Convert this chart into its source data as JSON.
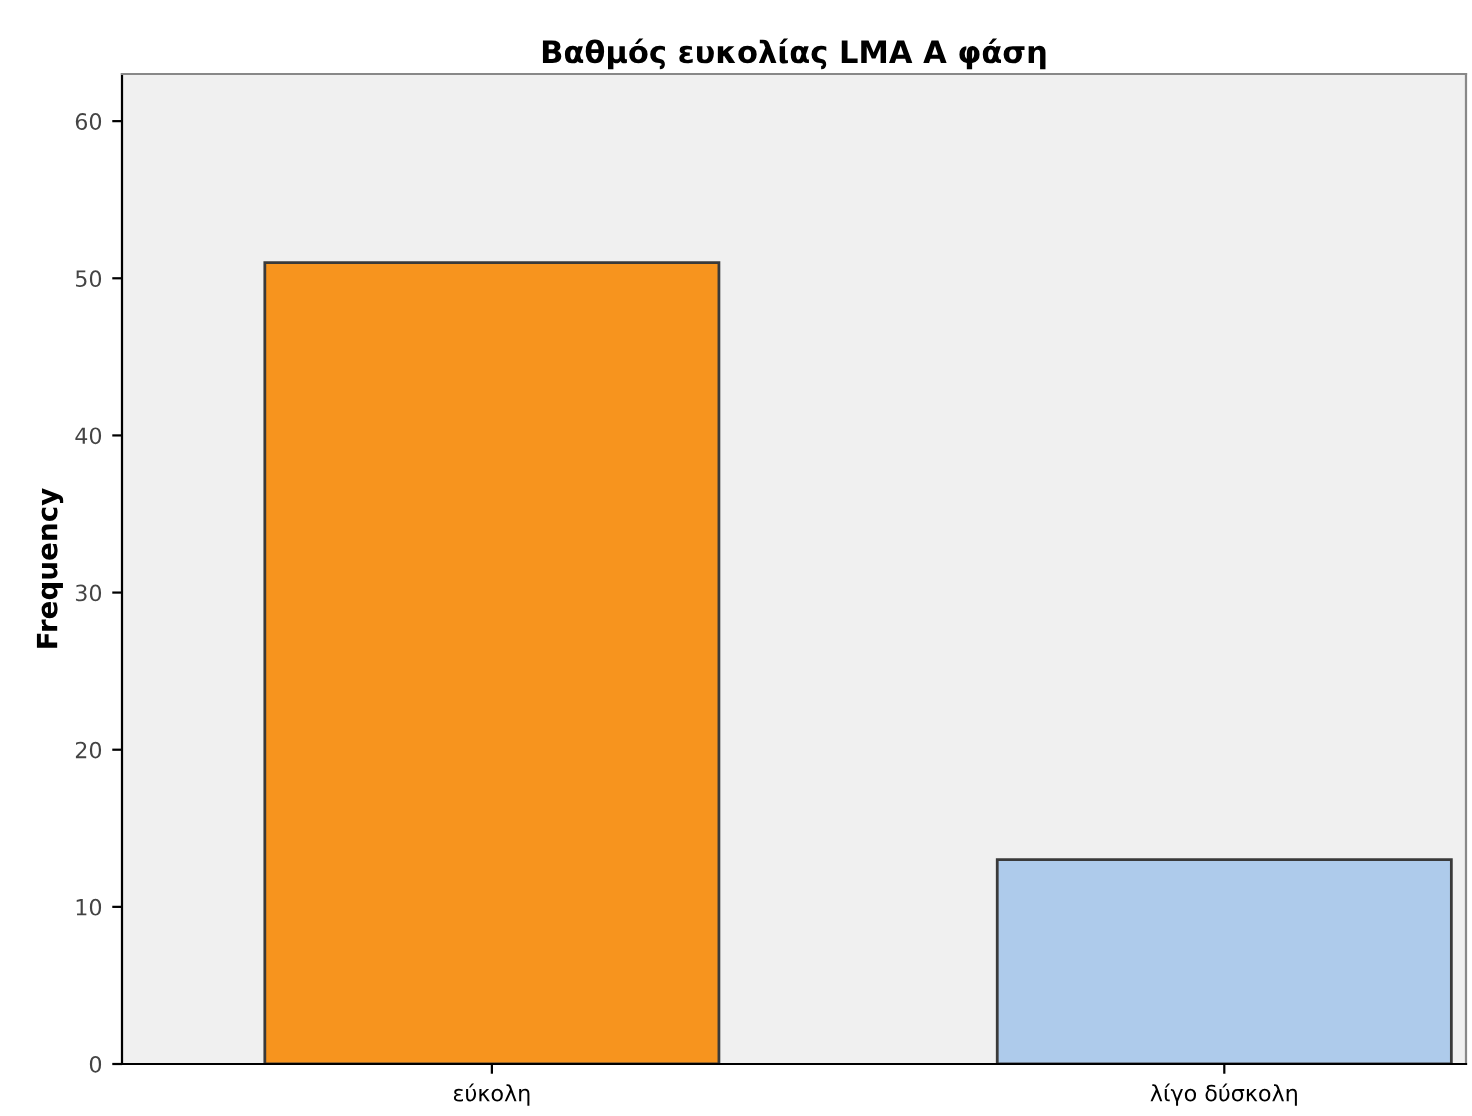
{
  "chart_data": {
    "type": "bar",
    "title": "Βαθμός ευκολίας LMA A φάση",
    "ylabel": "Frequency",
    "categories": [
      "εύκολη",
      "λίγο δύσκολη"
    ],
    "values": [
      51,
      13
    ],
    "colors": [
      "#f7941e",
      "#aecbeb"
    ],
    "ylim": [
      0,
      63
    ],
    "yticks": [
      0,
      10,
      20,
      30,
      40,
      50,
      60
    ],
    "grid": false,
    "legend": false
  }
}
